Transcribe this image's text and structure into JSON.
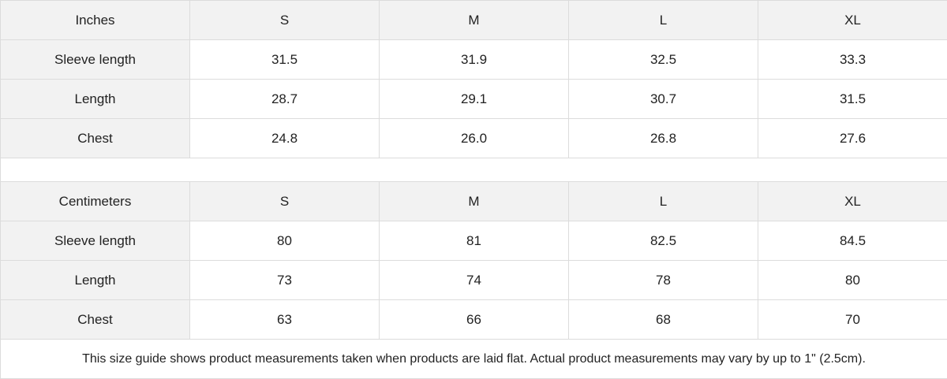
{
  "inches": {
    "header": [
      "Inches",
      "S",
      "M",
      "L",
      "XL"
    ],
    "rows": [
      [
        "Sleeve length",
        "31.5",
        "31.9",
        "32.5",
        "33.3"
      ],
      [
        "Length",
        "28.7",
        "29.1",
        "30.7",
        "31.5"
      ],
      [
        "Chest",
        "24.8",
        "26.0",
        "26.8",
        "27.6"
      ]
    ]
  },
  "centimeters": {
    "header": [
      "Centimeters",
      "S",
      "M",
      "L",
      "XL"
    ],
    "rows": [
      [
        "Sleeve length",
        "80",
        "81",
        "82.5",
        "84.5"
      ],
      [
        "Length",
        "73",
        "74",
        "78",
        "80"
      ],
      [
        "Chest",
        "63",
        "66",
        "68",
        "70"
      ]
    ]
  },
  "note": "This size guide shows product measurements taken when products are laid flat.  Actual product measurements may vary by up to 1\" (2.5cm).",
  "colors": {
    "header_bg": "#f2f2f2",
    "border": "#dcdcdc"
  }
}
